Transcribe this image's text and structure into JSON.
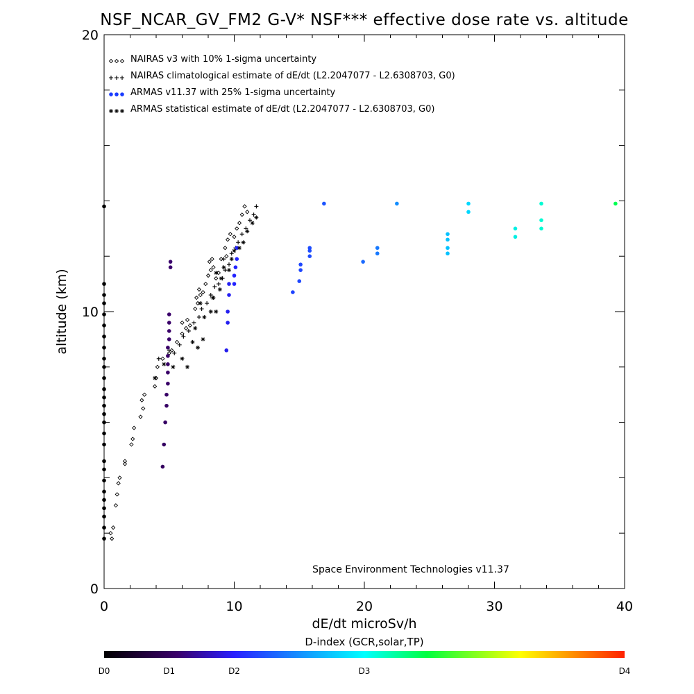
{
  "chart_data": {
    "type": "scatter",
    "title": "NSF_NCAR_GV_FM2 G-V* NSF*** effective dose rate vs. altitude",
    "xlabel": "dE/dt microSv/h",
    "ylabel": "altitude (km)",
    "xlim": [
      0,
      40
    ],
    "ylim": [
      0,
      20
    ],
    "xticks": [
      "0",
      "10",
      "20",
      "30",
      "40"
    ],
    "yticks": [
      "0",
      "10",
      "20"
    ],
    "grid": false,
    "legend_placement": "top-left",
    "footer": "Space Environment Technologies v11.37",
    "colorbar": {
      "title": "D-index (GCR,solar,TP)",
      "labels": [
        {
          "text": "D0",
          "value": 0
        },
        {
          "text": "D1",
          "value": 1
        },
        {
          "text": "D2",
          "value": 2
        },
        {
          "text": "D3",
          "value": 3
        },
        {
          "text": "D4",
          "value": 4
        }
      ],
      "label_x": [
        0,
        5,
        10,
        20,
        40
      ],
      "colors": [
        "#000000",
        "#4b0082",
        "#2020ff",
        "#00ffff",
        "#00ff40",
        "#ffff00",
        "#ff2000"
      ]
    },
    "series": [
      {
        "name": "NAIRAS v3 with 10% 1-sigma uncertainty",
        "marker": "diamond",
        "color": "#000000",
        "points": [
          [
            0.5,
            2.0
          ],
          [
            0.6,
            1.8
          ],
          [
            0.7,
            2.2
          ],
          [
            0.9,
            3.0
          ],
          [
            1.0,
            3.4
          ],
          [
            1.1,
            3.8
          ],
          [
            1.2,
            4.0
          ],
          [
            1.6,
            4.5
          ],
          [
            1.6,
            4.6
          ],
          [
            2.1,
            5.2
          ],
          [
            2.2,
            5.4
          ],
          [
            2.3,
            5.8
          ],
          [
            2.8,
            6.2
          ],
          [
            3.0,
            6.5
          ],
          [
            2.9,
            6.8
          ],
          [
            3.1,
            7.0
          ],
          [
            3.9,
            7.3
          ],
          [
            4.0,
            7.6
          ],
          [
            4.1,
            8.0
          ],
          [
            4.5,
            8.3
          ],
          [
            5.0,
            8.5
          ],
          [
            5.2,
            8.6
          ],
          [
            5.6,
            8.9
          ],
          [
            6.0,
            9.2
          ],
          [
            6.3,
            9.4
          ],
          [
            6.0,
            9.6
          ],
          [
            6.4,
            9.7
          ],
          [
            6.6,
            9.5
          ],
          [
            7.0,
            10.1
          ],
          [
            7.2,
            10.3
          ],
          [
            7.4,
            10.6
          ],
          [
            7.6,
            10.7
          ],
          [
            7.1,
            10.5
          ],
          [
            7.3,
            10.8
          ],
          [
            7.8,
            11.0
          ],
          [
            8.0,
            11.3
          ],
          [
            8.2,
            11.5
          ],
          [
            8.1,
            11.8
          ],
          [
            8.3,
            11.9
          ],
          [
            8.4,
            11.6
          ],
          [
            8.6,
            11.2
          ],
          [
            8.8,
            11.4
          ],
          [
            9.0,
            11.9
          ],
          [
            9.4,
            12.0
          ],
          [
            9.3,
            12.3
          ],
          [
            9.5,
            12.6
          ],
          [
            9.7,
            12.8
          ],
          [
            10.0,
            12.7
          ],
          [
            10.2,
            13.0
          ],
          [
            10.4,
            13.2
          ],
          [
            10.6,
            13.5
          ],
          [
            10.8,
            13.8
          ],
          [
            11.0,
            13.6
          ]
        ]
      },
      {
        "name": "NAIRAS climatological estimate of dE/dt (L2.2047077 - L2.6308703, G0)",
        "marker": "plus",
        "color": "#000000",
        "points": [
          [
            4.2,
            8.3
          ],
          [
            5.0,
            8.6
          ],
          [
            5.4,
            8.5
          ],
          [
            5.8,
            8.8
          ],
          [
            6.1,
            9.1
          ],
          [
            6.5,
            9.3
          ],
          [
            6.9,
            9.6
          ],
          [
            7.3,
            9.8
          ],
          [
            7.5,
            10.1
          ],
          [
            7.9,
            10.3
          ],
          [
            8.2,
            10.6
          ],
          [
            8.5,
            10.9
          ],
          [
            8.3,
            10.5
          ],
          [
            8.8,
            11.0
          ],
          [
            9.1,
            11.2
          ],
          [
            9.3,
            11.5
          ],
          [
            9.6,
            11.7
          ],
          [
            9.2,
            11.9
          ],
          [
            9.8,
            12.1
          ],
          [
            10.1,
            12.3
          ],
          [
            10.3,
            12.5
          ],
          [
            10.6,
            12.8
          ],
          [
            10.9,
            13.0
          ],
          [
            11.2,
            13.3
          ],
          [
            11.5,
            13.5
          ],
          [
            11.7,
            13.8
          ]
        ]
      },
      {
        "name": "ARMAS v11.37 with 25% 1-sigma uncertainty",
        "marker": "dot",
        "color_by": "D-index",
        "points": [
          [
            0,
            1.8
          ],
          [
            0,
            2.2
          ],
          [
            0,
            2.6
          ],
          [
            0,
            2.9
          ],
          [
            0,
            3.2
          ],
          [
            0,
            3.5
          ],
          [
            0,
            3.9
          ],
          [
            0,
            4.3
          ],
          [
            0,
            4.6
          ],
          [
            0,
            5.2
          ],
          [
            0,
            5.6
          ],
          [
            0,
            6.0
          ],
          [
            0,
            6.3
          ],
          [
            0,
            6.6
          ],
          [
            0,
            6.9
          ],
          [
            0,
            7.2
          ],
          [
            0,
            7.6
          ],
          [
            0,
            8.0
          ],
          [
            0,
            8.3
          ],
          [
            0,
            8.7
          ],
          [
            0,
            9.1
          ],
          [
            0,
            9.5
          ],
          [
            0,
            9.9
          ],
          [
            0,
            10.3
          ],
          [
            0,
            10.6
          ],
          [
            0,
            11.0
          ],
          [
            0,
            13.8
          ],
          [
            4.5,
            4.4
          ],
          [
            4.6,
            5.2
          ],
          [
            4.7,
            6.0
          ],
          [
            4.8,
            6.6
          ],
          [
            4.8,
            7.0
          ],
          [
            4.9,
            7.4
          ],
          [
            4.9,
            7.8
          ],
          [
            4.9,
            8.1
          ],
          [
            4.9,
            8.4
          ],
          [
            4.9,
            8.7
          ],
          [
            5.0,
            9.0
          ],
          [
            5.0,
            9.3
          ],
          [
            5.0,
            9.6
          ],
          [
            5.0,
            9.9
          ],
          [
            5.1,
            11.6
          ],
          [
            5.1,
            11.8
          ],
          [
            9.4,
            8.6
          ],
          [
            9.5,
            9.6
          ],
          [
            9.5,
            10.0
          ],
          [
            9.6,
            10.6
          ],
          [
            9.6,
            11.0
          ],
          [
            10.0,
            11.0
          ],
          [
            10.0,
            11.3
          ],
          [
            10.1,
            11.6
          ],
          [
            10.2,
            11.9
          ],
          [
            10.2,
            12.3
          ],
          [
            14.5,
            10.7
          ],
          [
            15.0,
            11.1
          ],
          [
            15.1,
            11.5
          ],
          [
            15.1,
            11.7
          ],
          [
            15.8,
            12.0
          ],
          [
            15.8,
            12.2
          ],
          [
            15.8,
            12.3
          ],
          [
            16.9,
            13.9
          ],
          [
            19.9,
            11.8
          ],
          [
            21.0,
            12.1
          ],
          [
            21.0,
            12.3
          ],
          [
            22.5,
            13.9
          ],
          [
            26.4,
            12.1
          ],
          [
            26.4,
            12.3
          ],
          [
            26.4,
            12.6
          ],
          [
            26.4,
            12.8
          ],
          [
            28.0,
            13.9
          ],
          [
            28.0,
            13.6
          ],
          [
            31.6,
            12.7
          ],
          [
            31.6,
            13.0
          ],
          [
            33.6,
            13.0
          ],
          [
            33.6,
            13.3
          ],
          [
            33.6,
            13.9
          ],
          [
            39.3,
            13.9
          ]
        ]
      },
      {
        "name": "ARMAS statistical estimate of dE/dt (L2.2047077 - L2.6308703, G0)",
        "marker": "asterisk",
        "color": "#000000",
        "points": [
          [
            3.9,
            7.6
          ],
          [
            4.6,
            8.1
          ],
          [
            5.3,
            8.0
          ],
          [
            6.0,
            8.3
          ],
          [
            6.4,
            8.0
          ],
          [
            6.8,
            8.9
          ],
          [
            7.2,
            8.7
          ],
          [
            7.6,
            9.0
          ],
          [
            7.0,
            9.4
          ],
          [
            7.7,
            9.8
          ],
          [
            8.2,
            10.0
          ],
          [
            7.4,
            10.3
          ],
          [
            8.6,
            10.0
          ],
          [
            8.4,
            10.5
          ],
          [
            8.9,
            10.8
          ],
          [
            9.0,
            11.2
          ],
          [
            8.6,
            11.4
          ],
          [
            9.2,
            11.6
          ],
          [
            9.6,
            11.5
          ],
          [
            9.8,
            11.9
          ],
          [
            10.0,
            12.2
          ],
          [
            10.4,
            12.3
          ],
          [
            10.7,
            12.5
          ],
          [
            11.0,
            12.9
          ],
          [
            11.4,
            13.2
          ],
          [
            11.7,
            13.4
          ]
        ]
      }
    ]
  }
}
